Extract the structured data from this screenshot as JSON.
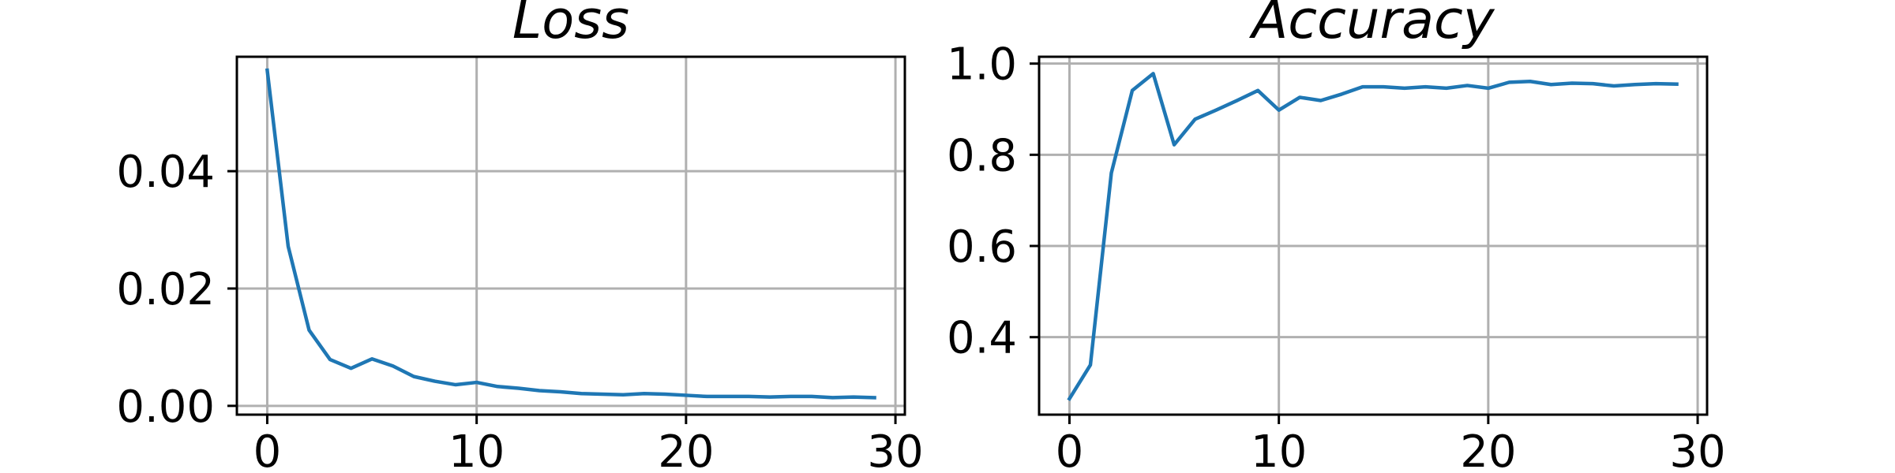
{
  "chart_data": [
    {
      "type": "line",
      "title": "Loss",
      "xlabel": "",
      "ylabel": "",
      "xlim": [
        -1.45,
        30.45
      ],
      "ylim": [
        -0.0015,
        0.0595
      ],
      "xticks": [
        0,
        10,
        20,
        30
      ],
      "xtick_labels": [
        "0",
        "10",
        "20",
        "30"
      ],
      "yticks": [
        0.0,
        0.02,
        0.04
      ],
      "ytick_labels": [
        "0.00",
        "0.02",
        "0.04"
      ],
      "grid": true,
      "color": "#1f77b4",
      "series": [
        {
          "x": [
            0,
            1,
            2,
            3,
            4,
            5,
            6,
            7,
            8,
            9,
            10,
            11,
            12,
            13,
            14,
            15,
            16,
            17,
            18,
            19,
            20,
            21,
            22,
            23,
            24,
            25,
            26,
            27,
            28,
            29
          ],
          "values": [
            0.0572,
            0.0272,
            0.0129,
            0.0079,
            0.0064,
            0.008,
            0.0068,
            0.005,
            0.0042,
            0.0036,
            0.004,
            0.0033,
            0.003,
            0.0026,
            0.0024,
            0.0021,
            0.002,
            0.0019,
            0.0021,
            0.002,
            0.0018,
            0.0016,
            0.0016,
            0.0016,
            0.0015,
            0.0016,
            0.0016,
            0.0014,
            0.0015,
            0.0014
          ]
        }
      ]
    },
    {
      "type": "line",
      "title": "Accuracy",
      "xlabel": "",
      "ylabel": "",
      "xlim": [
        -1.45,
        30.45
      ],
      "ylim": [
        0.23,
        1.015
      ],
      "xticks": [
        0,
        10,
        20,
        30
      ],
      "xtick_labels": [
        "0",
        "10",
        "20",
        "30"
      ],
      "yticks": [
        0.4,
        0.6,
        0.8,
        1.0
      ],
      "ytick_labels": [
        "0.4",
        "0.6",
        "0.8",
        "1.0"
      ],
      "grid": true,
      "color": "#1f77b4",
      "series": [
        {
          "x": [
            0,
            1,
            2,
            3,
            4,
            5,
            6,
            7,
            8,
            9,
            10,
            11,
            12,
            13,
            14,
            15,
            16,
            17,
            18,
            19,
            20,
            21,
            22,
            23,
            24,
            25,
            26,
            27,
            28,
            29
          ],
          "values": [
            0.265,
            0.339,
            0.76,
            0.941,
            0.978,
            0.822,
            0.878,
            0.898,
            0.919,
            0.941,
            0.898,
            0.926,
            0.919,
            0.933,
            0.949,
            0.949,
            0.946,
            0.949,
            0.946,
            0.952,
            0.946,
            0.959,
            0.961,
            0.954,
            0.957,
            0.956,
            0.951,
            0.954,
            0.956,
            0.955
          ]
        }
      ]
    }
  ]
}
